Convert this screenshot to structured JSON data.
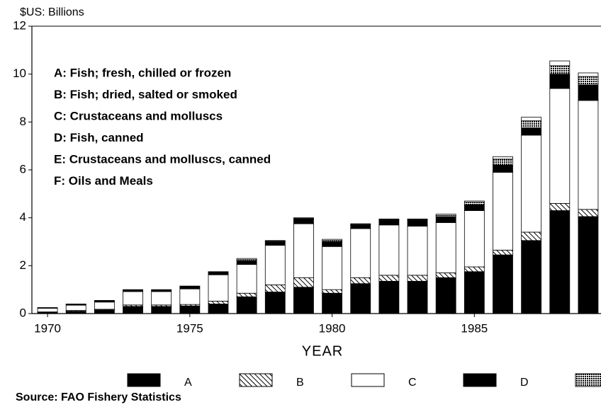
{
  "chart_data": {
    "type": "stacked_bar",
    "y_label": "$US: Billions",
    "x_label": "YEAR",
    "source": "Source: FAO Fishery Statistics",
    "annotations": [
      "A: Fish; fresh, chilled or frozen",
      "B: Fish; dried, salted or smoked",
      "C: Crustaceans and molluscs",
      "D: Fish, canned",
      "E: Crustaceans and molluscs, canned",
      "F: Oils and Meals"
    ],
    "x": [
      1970,
      1971,
      1972,
      1973,
      1974,
      1975,
      1976,
      1977,
      1978,
      1979,
      1980,
      1981,
      1982,
      1983,
      1984,
      1985,
      1986,
      1987,
      1988,
      1989
    ],
    "xlim": [
      1969.45,
      1989.45
    ],
    "xticks": [
      1970,
      1975,
      1980,
      1985
    ],
    "ylim": [
      0,
      12
    ],
    "yticks": [
      0,
      2,
      4,
      6,
      8,
      10,
      12
    ],
    "series": [
      {
        "name": "A",
        "color": "#000000",
        "pattern": "solid",
        "values": [
          0.05,
          0.1,
          0.15,
          0.3,
          0.3,
          0.32,
          0.4,
          0.7,
          0.9,
          1.1,
          0.85,
          1.25,
          1.35,
          1.35,
          1.5,
          1.75,
          2.45,
          3.05,
          4.3,
          4.05
        ]
      },
      {
        "name": "B",
        "color": "#000000",
        "pattern": "hatch",
        "values": [
          0.02,
          0.03,
          0.03,
          0.06,
          0.06,
          0.06,
          0.12,
          0.15,
          0.3,
          0.4,
          0.15,
          0.25,
          0.25,
          0.25,
          0.2,
          0.2,
          0.2,
          0.35,
          0.3,
          0.3
        ]
      },
      {
        "name": "C",
        "color": "#ffffff",
        "pattern": "solid",
        "values": [
          0.15,
          0.22,
          0.3,
          0.56,
          0.56,
          0.65,
          1.1,
          1.2,
          1.65,
          2.25,
          1.8,
          2.05,
          2.1,
          2.05,
          2.1,
          2.35,
          3.25,
          4.05,
          4.8,
          4.55
        ]
      },
      {
        "name": "D",
        "color": "#000000",
        "pattern": "solid",
        "values": [
          0.02,
          0.03,
          0.04,
          0.06,
          0.06,
          0.08,
          0.1,
          0.15,
          0.15,
          0.2,
          0.2,
          0.15,
          0.2,
          0.25,
          0.25,
          0.25,
          0.3,
          0.3,
          0.6,
          0.65
        ]
      },
      {
        "name": "E",
        "color": "#000000",
        "pattern": "dots",
        "values": [
          0.01,
          0.01,
          0.01,
          0.01,
          0.01,
          0.02,
          0.02,
          0.05,
          0.03,
          0.03,
          0.05,
          0.03,
          0.03,
          0.03,
          0.05,
          0.1,
          0.25,
          0.3,
          0.35,
          0.35
        ]
      },
      {
        "name": "F",
        "color": "#ffffff",
        "pattern": "solid",
        "values": [
          0.0,
          0.01,
          0.02,
          0.01,
          0.01,
          0.02,
          0.01,
          0.05,
          0.02,
          0.02,
          0.05,
          0.02,
          0.02,
          0.02,
          0.05,
          0.05,
          0.1,
          0.15,
          0.2,
          0.15
        ]
      }
    ]
  }
}
